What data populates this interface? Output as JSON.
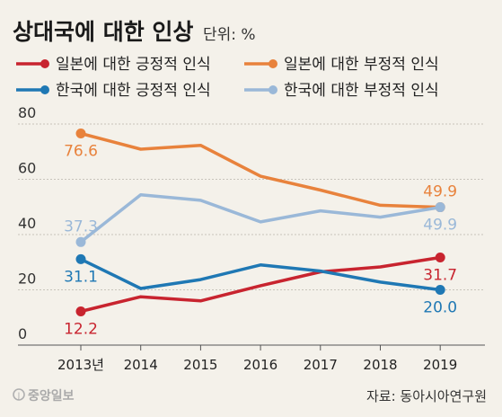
{
  "header": {
    "title": "상대국에 대한 인상",
    "unit": "단위: %"
  },
  "footer": {
    "brand": "중앙일보",
    "source": "자료: 동아시아연구원"
  },
  "chart_data": {
    "type": "line",
    "title": "상대국에 대한 인상",
    "x": [
      "2013년",
      "2014",
      "2015",
      "2016",
      "2017",
      "2018",
      "2019"
    ],
    "yticks": [
      "0",
      "20",
      "40",
      "60",
      "80"
    ],
    "ylim": [
      0,
      80
    ],
    "grid": "horizontal",
    "legend_position": "top",
    "series": [
      {
        "name": "일본에 대한 긍정적 인식",
        "color": "#c8242f",
        "values": [
          12.2,
          17.5,
          16,
          21.5,
          26.5,
          28.3,
          31.7
        ],
        "labels": [
          {
            "index": 0,
            "text": "12.2",
            "pos": "below"
          },
          {
            "index": 6,
            "text": "31.7",
            "pos": "below"
          }
        ]
      },
      {
        "name": "일본에 대한 부정적 인식",
        "color": "#e8823c",
        "values": [
          76.6,
          70.9,
          72.3,
          61.1,
          56.1,
          50.6,
          49.9
        ],
        "labels": [
          {
            "index": 0,
            "text": "76.6",
            "pos": "below"
          },
          {
            "index": 6,
            "text": "49.9",
            "pos": "above"
          }
        ]
      },
      {
        "name": "한국에 대한 긍정적 인식",
        "color": "#1f78b4",
        "values": [
          31.1,
          20.5,
          23.7,
          29,
          26.8,
          22.8,
          20.0
        ],
        "labels": [
          {
            "index": 0,
            "text": "31.1",
            "pos": "below"
          },
          {
            "index": 6,
            "text": "20.0",
            "pos": "below"
          }
        ]
      },
      {
        "name": "한국에 대한 부정적 인식",
        "color": "#9ab8d8",
        "values": [
          37.3,
          54.4,
          52.4,
          44.6,
          48.6,
          46.3,
          49.9
        ],
        "labels": [
          {
            "index": 0,
            "text": "37.3",
            "pos": "above"
          },
          {
            "index": 6,
            "text": "49.9",
            "pos": "below"
          }
        ]
      }
    ]
  }
}
